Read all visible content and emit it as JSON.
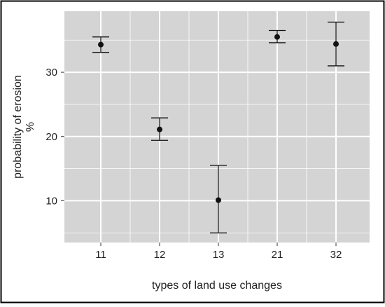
{
  "chart_data": {
    "type": "scatter",
    "title": "",
    "xlabel": "types of land use changes",
    "ylabel": [
      "probability of erosion",
      "%"
    ],
    "categories": [
      "11",
      "12",
      "13",
      "21",
      "32"
    ],
    "y_ticks": [
      10,
      20,
      30
    ],
    "ylim": [
      3.5,
      39.5
    ],
    "grid": true,
    "series": [
      {
        "points": [
          {
            "x": "11",
            "y": 34.3,
            "low": 33.1,
            "high": 35.5
          },
          {
            "x": "12",
            "y": 21.1,
            "low": 19.4,
            "high": 22.9
          },
          {
            "x": "13",
            "y": 10.1,
            "low": 5.0,
            "high": 15.5
          },
          {
            "x": "21",
            "y": 35.5,
            "low": 34.6,
            "high": 36.5
          },
          {
            "x": "32",
            "y": 34.4,
            "low": 31.0,
            "high": 37.8
          }
        ]
      }
    ],
    "colors": {
      "panel": "#d4d4d4",
      "grid": "#ffffff",
      "point": "#111111",
      "errorbar": "#111111",
      "frame": "#000000"
    }
  }
}
